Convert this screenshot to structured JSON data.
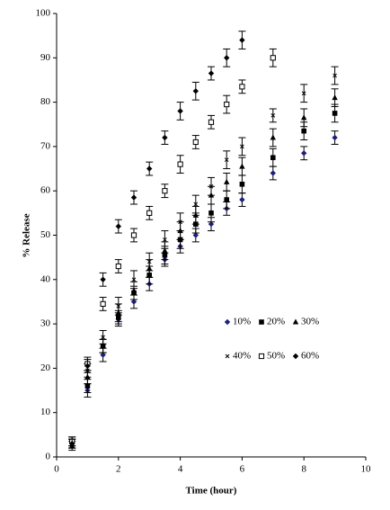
{
  "chart_data": {
    "type": "scatter",
    "xlabel": "Time (hour)",
    "ylabel": "% Release",
    "x": [
      0.5,
      1,
      1.5,
      2,
      2.5,
      3,
      3.5,
      4,
      4.5,
      5,
      5.5,
      6,
      7,
      8,
      9
    ],
    "xlim": [
      0,
      10
    ],
    "xticks": [
      0,
      2,
      4,
      6,
      8,
      10
    ],
    "ylim": [
      0,
      100
    ],
    "yticks": [
      0,
      10,
      20,
      30,
      40,
      50,
      60,
      70,
      80,
      90,
      100
    ],
    "grid": false,
    "series": [
      {
        "name": "10%",
        "color": "#1f1f7a",
        "marker": "diamond",
        "values": [
          3,
          15,
          23,
          31,
          35,
          39,
          44.5,
          47.5,
          50,
          52.5,
          56,
          58,
          64,
          68.5,
          72
        ],
        "errors": [
          1,
          1.5,
          1.5,
          1.5,
          1.5,
          1.5,
          1.5,
          1.5,
          1.5,
          1.5,
          1.5,
          1.5,
          1.5,
          1.5,
          1.5
        ]
      },
      {
        "name": "20%",
        "color": "#000000",
        "marker": "square",
        "values": [
          3.5,
          16,
          25,
          31.5,
          37,
          41,
          45.5,
          49,
          52.5,
          55,
          58,
          61.5,
          67.5,
          73.5,
          77.5
        ],
        "errors": [
          1,
          1.5,
          1.5,
          1.5,
          1.5,
          2,
          2,
          2,
          2,
          2,
          2,
          2,
          2,
          2,
          2
        ]
      },
      {
        "name": "30%",
        "color": "#000000",
        "marker": "triangle",
        "values": [
          2.5,
          18,
          25,
          32.5,
          37.5,
          42.5,
          46.5,
          51,
          54.5,
          59,
          62,
          65.5,
          72,
          76.5,
          81
        ],
        "errors": [
          1,
          1.5,
          1.5,
          2,
          2,
          2,
          2,
          2,
          2,
          2,
          2,
          2,
          2,
          2,
          2
        ]
      },
      {
        "name": "40%",
        "color": "#000000",
        "marker": "cross",
        "values": [
          3,
          19.5,
          27,
          34,
          40,
          44,
          49,
          53,
          57,
          61,
          67,
          70,
          77,
          82,
          86
        ],
        "errors": [
          1,
          1.5,
          1.5,
          2,
          2,
          2,
          2,
          2,
          2,
          2,
          2,
          2,
          1.5,
          2,
          2
        ]
      },
      {
        "name": "50%",
        "color": "#000000",
        "marker": "open-square",
        "values": [
          3.5,
          21,
          34.5,
          43,
          50,
          55,
          60,
          66,
          71,
          75.5,
          79.5,
          83.5,
          90,
          null,
          null
        ],
        "errors": [
          1,
          1.5,
          1.5,
          1.5,
          1.5,
          1.5,
          1.5,
          2,
          1.5,
          1.5,
          2,
          1.5,
          2,
          null,
          null
        ]
      },
      {
        "name": "60%",
        "color": "#000000",
        "marker": "diamond",
        "values": [
          3,
          20.5,
          40,
          52,
          58.5,
          65,
          72,
          78,
          82.5,
          86.5,
          90,
          94,
          null,
          null,
          null
        ],
        "errors": [
          1,
          1.5,
          1.5,
          1.5,
          1.5,
          1.5,
          1.5,
          2,
          2,
          1.5,
          2,
          2,
          null,
          null,
          null
        ]
      }
    ]
  }
}
